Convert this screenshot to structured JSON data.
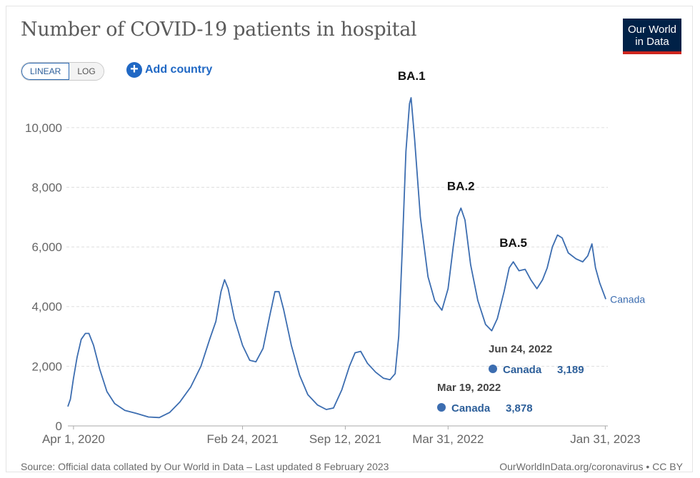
{
  "header": {
    "title": "Number of COVID-19 patients in hospital",
    "logo_line1": "Our World",
    "logo_line2": "in Data"
  },
  "controls": {
    "linear_label": "LINEAR",
    "log_label": "LOG",
    "add_country_label": "Add country"
  },
  "footer": {
    "source": "Source: Official data collated by Our World in Data – Last updated 8 February 2023",
    "url": "OurWorldInData.org/coronavirus • CC BY"
  },
  "colors": {
    "line": "#3c6db0",
    "grid": "#dddddd",
    "axis_text": "#666666",
    "logo_bg": "#002147",
    "logo_accent": "#ce261e"
  },
  "chart_data": {
    "type": "line",
    "grid": true,
    "ylim": [
      0,
      11000
    ],
    "y_ticks": [
      0,
      2000,
      4000,
      6000,
      8000,
      10000
    ],
    "y_tick_labels": [
      "0",
      "2,000",
      "4,000",
      "6,000",
      "8,000",
      "10,000"
    ],
    "x_range": [
      "2020-03-21",
      "2023-02-05"
    ],
    "x_ticks": [
      "2020-04-01",
      "2021-02-24",
      "2021-09-12",
      "2022-03-31",
      "2023-01-31"
    ],
    "x_tick_labels": [
      "Apr 1, 2020",
      "Feb 24, 2021",
      "Sep 12, 2021",
      "Mar 31, 2022",
      "Jan 31, 2023"
    ],
    "series": [
      {
        "name": "Canada",
        "color": "#3c6db0",
        "points": [
          [
            "2020-03-21",
            650
          ],
          [
            "2020-03-26",
            900
          ],
          [
            "2020-04-01",
            1600
          ],
          [
            "2020-04-08",
            2300
          ],
          [
            "2020-04-16",
            2900
          ],
          [
            "2020-04-24",
            3100
          ],
          [
            "2020-05-01",
            3100
          ],
          [
            "2020-05-10",
            2700
          ],
          [
            "2020-05-22",
            1900
          ],
          [
            "2020-06-05",
            1150
          ],
          [
            "2020-06-20",
            750
          ],
          [
            "2020-07-10",
            520
          ],
          [
            "2020-08-01",
            420
          ],
          [
            "2020-08-25",
            300
          ],
          [
            "2020-09-15",
            280
          ],
          [
            "2020-10-05",
            450
          ],
          [
            "2020-10-25",
            800
          ],
          [
            "2020-11-15",
            1300
          ],
          [
            "2020-12-05",
            2000
          ],
          [
            "2020-12-22",
            2900
          ],
          [
            "2021-01-03",
            3500
          ],
          [
            "2021-01-13",
            4500
          ],
          [
            "2021-01-20",
            4900
          ],
          [
            "2021-01-27",
            4600
          ],
          [
            "2021-02-08",
            3600
          ],
          [
            "2021-02-24",
            2700
          ],
          [
            "2021-03-10",
            2200
          ],
          [
            "2021-03-22",
            2150
          ],
          [
            "2021-04-05",
            2600
          ],
          [
            "2021-04-18",
            3700
          ],
          [
            "2021-04-28",
            4500
          ],
          [
            "2021-05-06",
            4500
          ],
          [
            "2021-05-15",
            3900
          ],
          [
            "2021-05-30",
            2700
          ],
          [
            "2021-06-15",
            1700
          ],
          [
            "2021-07-01",
            1050
          ],
          [
            "2021-07-20",
            700
          ],
          [
            "2021-08-06",
            550
          ],
          [
            "2021-08-20",
            600
          ],
          [
            "2021-09-05",
            1200
          ],
          [
            "2021-09-20",
            2000
          ],
          [
            "2021-10-01",
            2450
          ],
          [
            "2021-10-12",
            2500
          ],
          [
            "2021-10-25",
            2100
          ],
          [
            "2021-11-10",
            1800
          ],
          [
            "2021-11-25",
            1600
          ],
          [
            "2021-12-08",
            1550
          ],
          [
            "2021-12-18",
            1750
          ],
          [
            "2021-12-25",
            3000
          ],
          [
            "2022-01-01",
            6000
          ],
          [
            "2022-01-08",
            9200
          ],
          [
            "2022-01-15",
            10800
          ],
          [
            "2022-01-18",
            11000
          ],
          [
            "2022-01-25",
            9600
          ],
          [
            "2022-02-05",
            7000
          ],
          [
            "2022-02-20",
            5000
          ],
          [
            "2022-03-05",
            4200
          ],
          [
            "2022-03-19",
            3878
          ],
          [
            "2022-03-31",
            4600
          ],
          [
            "2022-04-10",
            6000
          ],
          [
            "2022-04-18",
            7000
          ],
          [
            "2022-04-25",
            7300
          ],
          [
            "2022-05-03",
            6900
          ],
          [
            "2022-05-14",
            5400
          ],
          [
            "2022-05-28",
            4200
          ],
          [
            "2022-06-12",
            3400
          ],
          [
            "2022-06-24",
            3189
          ],
          [
            "2022-07-05",
            3600
          ],
          [
            "2022-07-18",
            4500
          ],
          [
            "2022-07-28",
            5300
          ],
          [
            "2022-08-05",
            5500
          ],
          [
            "2022-08-16",
            5200
          ],
          [
            "2022-08-28",
            5250
          ],
          [
            "2022-09-08",
            4900
          ],
          [
            "2022-09-20",
            4600
          ],
          [
            "2022-10-01",
            4900
          ],
          [
            "2022-10-10",
            5300
          ],
          [
            "2022-10-20",
            6000
          ],
          [
            "2022-10-30",
            6400
          ],
          [
            "2022-11-08",
            6300
          ],
          [
            "2022-11-20",
            5800
          ],
          [
            "2022-12-05",
            5600
          ],
          [
            "2022-12-18",
            5500
          ],
          [
            "2022-12-28",
            5700
          ],
          [
            "2023-01-05",
            6100
          ],
          [
            "2023-01-12",
            5300
          ],
          [
            "2023-01-20",
            4800
          ],
          [
            "2023-02-01",
            4250
          ]
        ]
      }
    ],
    "end_label": "Canada",
    "annotations": [
      {
        "text": "BA.1",
        "x": "2022-01-19",
        "y": 11600
      },
      {
        "text": "BA.2",
        "x": "2022-04-25",
        "y": 7900
      },
      {
        "text": "BA.5",
        "x": "2022-08-05",
        "y": 6000
      }
    ],
    "tooltips": [
      {
        "date": "Jun 24, 2022",
        "country": "Canada",
        "value": "3,189"
      },
      {
        "date": "Mar 19, 2022",
        "country": "Canada",
        "value": "3,878"
      }
    ]
  }
}
